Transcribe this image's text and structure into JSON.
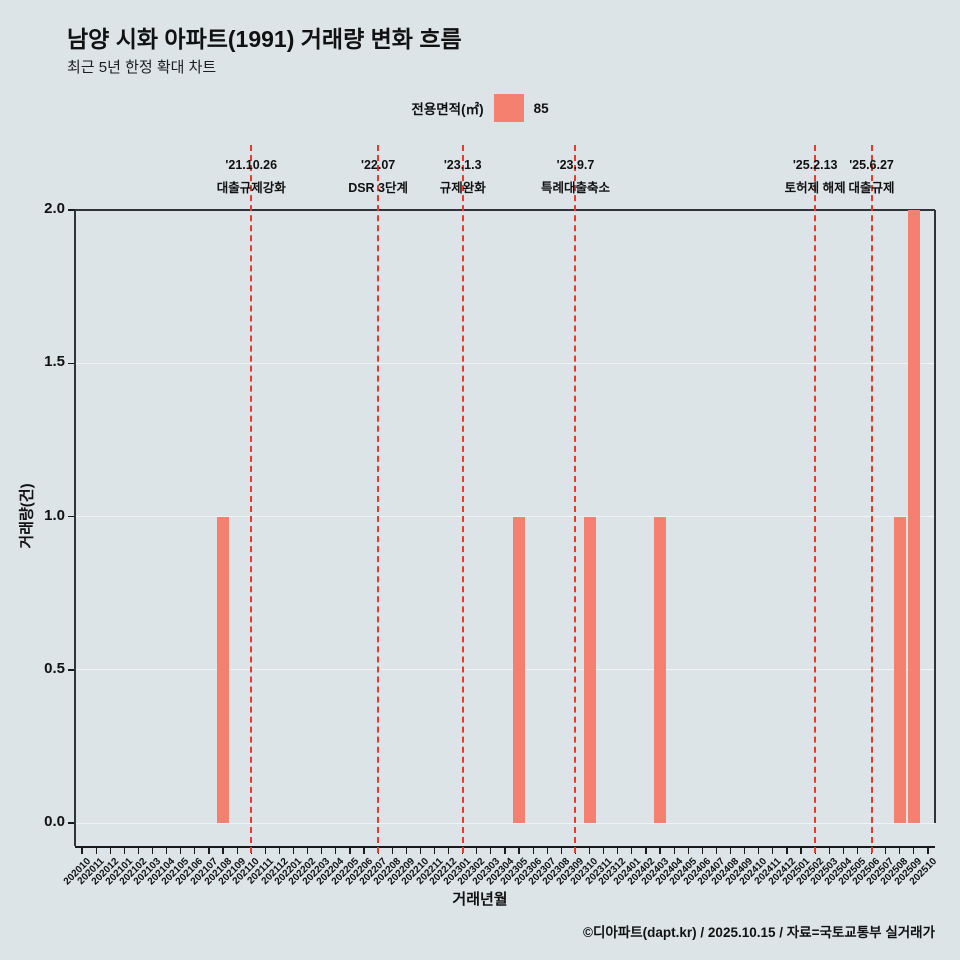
{
  "header": {
    "title": "남양 시화 아파트(1991) 거래량 변화 흐름",
    "subtitle": "최근 5년 한정 확대 차트"
  },
  "footer": {
    "credit": "©디아파트(dapt.kr) / 2025.10.15 / 자료=국토교통부 실거래가"
  },
  "chart_data": {
    "type": "bar",
    "title": "남양 시화 아파트(1991) 거래량 변화 흐름",
    "subtitle": "최근 5년 한정 확대 차트",
    "xlabel": "거래년월",
    "ylabel": "거래량(건)",
    "ylim": [
      0,
      2
    ],
    "yticks": [
      0,
      0.5,
      1,
      1.5,
      2
    ],
    "grid": true,
    "legend_position": "top-center",
    "legend": {
      "label": "전용면적(㎡)",
      "entries": [
        {
          "name": "85",
          "color": "#f5806f"
        }
      ]
    },
    "categories": [
      "202010",
      "202011",
      "202012",
      "202101",
      "202102",
      "202103",
      "202104",
      "202105",
      "202106",
      "202107",
      "202108",
      "202109",
      "202110",
      "202111",
      "202112",
      "202201",
      "202202",
      "202203",
      "202204",
      "202205",
      "202206",
      "202207",
      "202208",
      "202209",
      "202210",
      "202211",
      "202212",
      "202301",
      "202302",
      "202303",
      "202304",
      "202305",
      "202306",
      "202307",
      "202308",
      "202309",
      "202310",
      "202311",
      "202312",
      "202401",
      "202402",
      "202403",
      "202404",
      "202405",
      "202406",
      "202407",
      "202408",
      "202409",
      "202410",
      "202411",
      "202412",
      "202501",
      "202502",
      "202503",
      "202504",
      "202505",
      "202506",
      "202507",
      "202508",
      "202509",
      "202510"
    ],
    "values": [
      0,
      0,
      0,
      0,
      0,
      0,
      0,
      0,
      0,
      0,
      1,
      0,
      0,
      0,
      0,
      0,
      0,
      0,
      0,
      0,
      0,
      0,
      0,
      0,
      0,
      0,
      0,
      0,
      0,
      0,
      0,
      1,
      0,
      0,
      0,
      0,
      1,
      0,
      0,
      0,
      0,
      1,
      0,
      0,
      0,
      0,
      0,
      0,
      0,
      0,
      0,
      0,
      0,
      0,
      0,
      0,
      0,
      0,
      1,
      2,
      0
    ],
    "events": [
      {
        "date": "'21.10.26",
        "label": "대출규제강화",
        "month": "202110"
      },
      {
        "date": "'22.07",
        "label": "DSR 3단계",
        "month": "202207"
      },
      {
        "date": "'23.1.3",
        "label": "규제완화",
        "month": "202301"
      },
      {
        "date": "'23.9.7",
        "label": "특례대출축소",
        "month": "202309"
      },
      {
        "date": "'25.2.13",
        "label": "토허제 해제",
        "month": "202502"
      },
      {
        "date": "'25.6.27",
        "label": "대출규제",
        "month": "202506"
      }
    ],
    "colors": {
      "background": "#dde4e8",
      "bar": "#f5806f",
      "event_line": "#e8392b",
      "grid": "#eef3f5",
      "axis": "#1a1a1a"
    }
  }
}
